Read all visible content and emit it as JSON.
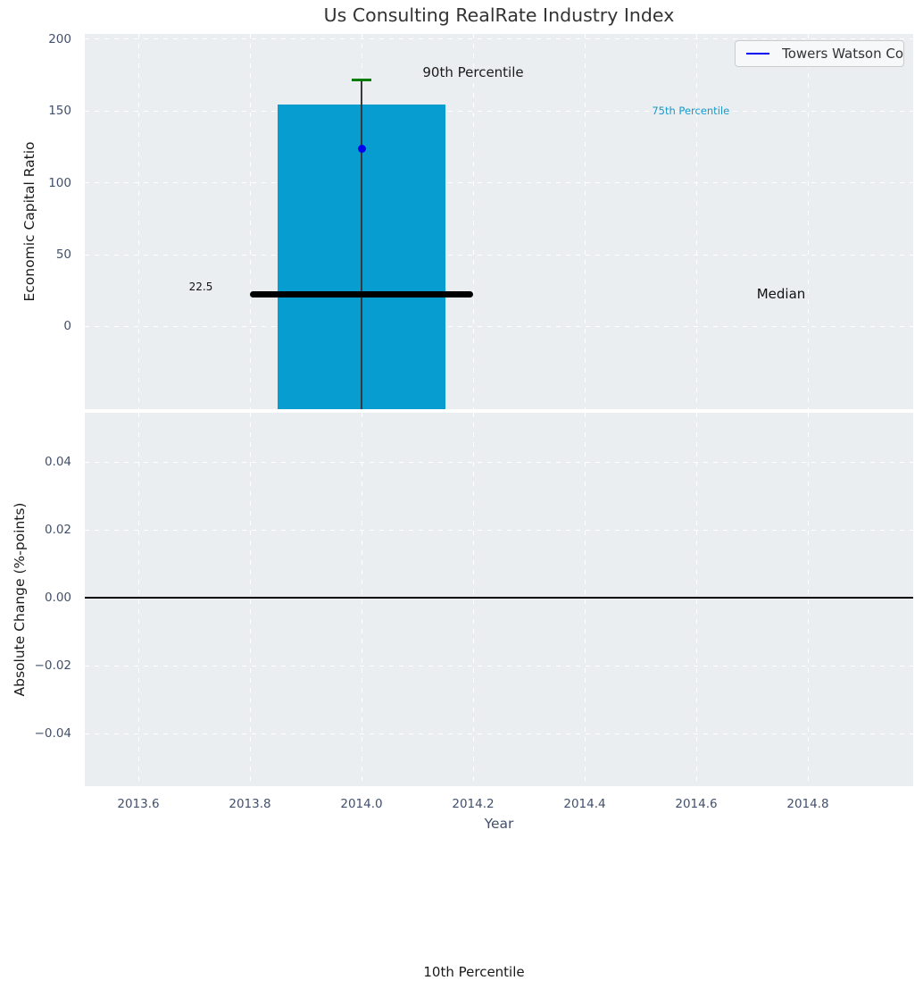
{
  "title": "Us Consulting RealRate Industry Index",
  "legend": {
    "label": "Towers Watson Co"
  },
  "x_axis": {
    "label": "Year",
    "xlim": [
      2013.504,
      2014.9888
    ],
    "ticks": [
      {
        "v": 2013.6,
        "label": "2013.6"
      },
      {
        "v": 2013.8,
        "label": "2013.8"
      },
      {
        "v": 2014.0,
        "label": "2014.0"
      },
      {
        "v": 2014.2,
        "label": "2014.2"
      },
      {
        "v": 2014.4,
        "label": "2014.4"
      },
      {
        "v": 2014.6,
        "label": "2014.6"
      },
      {
        "v": 2014.8,
        "label": "2014.8"
      }
    ]
  },
  "colors": {
    "figure_bg": "#ffffff",
    "axes_bg": "#eaeef0",
    "grid": "#ffffff",
    "tick_label": "#42506b",
    "text_dark": "#1a1a1a",
    "title": "#333333",
    "bar": "#089dd1",
    "whisker": "#3a3a3a",
    "cap_green": "#007d00",
    "point_blue": "#0202f0",
    "line_black": "#000000",
    "legend_bg": "#f6f8f9",
    "legend_border": "#c9cccd",
    "legend_text": "#333333",
    "annotation_cyan": "#1899cb"
  },
  "chart_data": [
    {
      "type": "bar",
      "ylabel": "Economic Capital Ratio",
      "ylim": [
        -57.5,
        203.5
      ],
      "yticks": [
        {
          "v": 0,
          "label": "0"
        },
        {
          "v": 50,
          "label": "50"
        },
        {
          "v": 100,
          "label": "100"
        },
        {
          "v": 150,
          "label": "150"
        },
        {
          "v": 200,
          "label": "200"
        }
      ],
      "bar": {
        "x": 2014.0,
        "width": 0.3,
        "top": 154.5,
        "extends_below_axis": true
      },
      "whisker": {
        "x": 2014.0,
        "cap_value": 171.5,
        "cap_width": 0.035
      },
      "median_line": {
        "value": 22.5,
        "x_start": 2013.8,
        "x_end": 2014.2
      },
      "point": {
        "x": 2014.0,
        "y": 123.5,
        "series": "Towers Watson Co"
      },
      "annotations": [
        {
          "id": "90th-percentile-label",
          "text": "90th Percentile",
          "x": 2014.2,
          "y": 177,
          "size": 15,
          "color": "#1a1a1a"
        },
        {
          "id": "75th-percentile-label",
          "text": "75th Percentile",
          "x": 2014.59,
          "y": 150,
          "size": 11.5,
          "color": "#1899cb"
        },
        {
          "id": "median-label",
          "text": "Median",
          "x": 2014.752,
          "y": 22.5,
          "size": 15,
          "color": "#111111"
        },
        {
          "id": "median-value-label",
          "text": "22.5",
          "x": 2013.712,
          "y": 27.5,
          "size": 12,
          "color": "#111111"
        }
      ]
    },
    {
      "type": "line",
      "ylabel": "Absolute Change (%-points)",
      "ylim": [
        -0.0555,
        0.0545
      ],
      "yticks": [
        {
          "v": 0.04,
          "label": "0.04"
        },
        {
          "v": 0.02,
          "label": "0.02"
        },
        {
          "v": 0.0,
          "label": "0.00"
        },
        {
          "v": -0.02,
          "label": "−0.02"
        },
        {
          "v": -0.04,
          "label": "−0.04"
        }
      ],
      "zero_line": {
        "value": 0.0
      }
    }
  ],
  "footer_annotation": {
    "text": "10th Percentile"
  }
}
